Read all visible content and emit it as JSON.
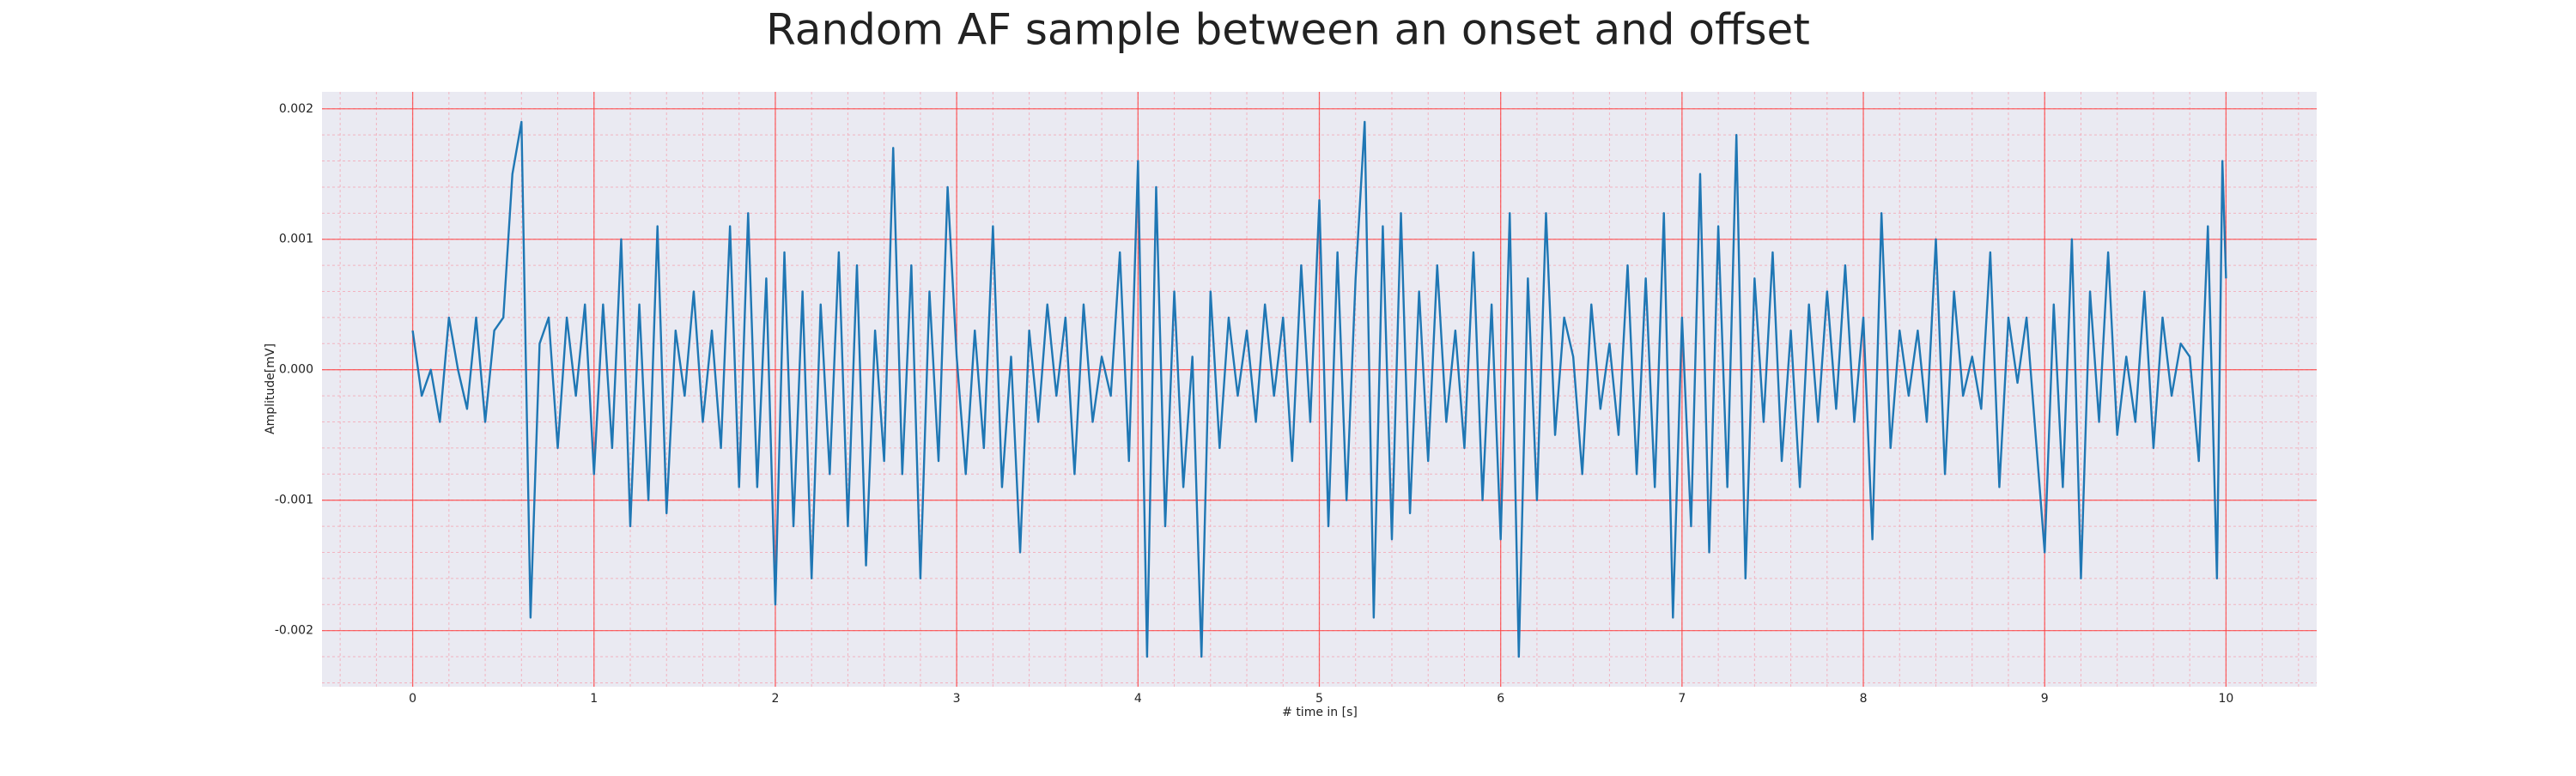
{
  "chart_data": {
    "type": "line",
    "title": "Random AF sample between an onset and offset",
    "x_label": "# time in [s]",
    "y_label": "Amplitude[mV]",
    "grid": true,
    "minor_grid": true,
    "xlim": [
      -0.5,
      10.5
    ],
    "ylim": [
      -0.00243,
      0.00213
    ],
    "xticks": [
      0,
      1,
      2,
      3,
      4,
      5,
      6,
      7,
      8,
      9,
      10
    ],
    "yticks": [
      -0.002,
      -0.001,
      {
        "value": 0,
        "label": "0.000"
      },
      0.001,
      0.002
    ],
    "x": [
      0,
      0.05,
      0.1,
      0.15,
      0.2,
      0.25,
      0.3,
      0.35,
      0.4,
      0.45,
      0.5,
      0.55,
      0.6,
      0.65,
      0.7,
      0.75,
      0.8,
      0.85,
      0.9,
      0.95,
      1,
      1.05,
      1.1,
      1.15,
      1.2,
      1.25,
      1.3,
      1.35,
      1.4,
      1.45,
      1.5,
      1.55,
      1.6,
      1.65,
      1.7,
      1.75,
      1.8,
      1.85,
      1.9,
      1.95,
      2,
      2.05,
      2.1,
      2.15,
      2.2,
      2.25,
      2.3,
      2.35,
      2.4,
      2.45,
      2.5,
      2.55,
      2.6,
      2.65,
      2.7,
      2.75,
      2.8,
      2.85,
      2.9,
      2.95,
      3,
      3.05,
      3.1,
      3.15,
      3.2,
      3.25,
      3.3,
      3.35,
      3.4,
      3.45,
      3.5,
      3.55,
      3.6,
      3.65,
      3.7,
      3.75,
      3.8,
      3.85,
      3.9,
      3.95,
      4,
      4.05,
      4.1,
      4.15,
      4.2,
      4.25,
      4.3,
      4.35,
      4.4,
      4.45,
      4.5,
      4.55,
      4.6,
      4.65,
      4.7,
      4.75,
      4.8,
      4.85,
      4.9,
      4.95,
      5,
      5.05,
      5.1,
      5.15,
      5.2,
      5.25,
      5.3,
      5.35,
      5.4,
      5.45,
      5.5,
      5.55,
      5.6,
      5.65,
      5.7,
      5.75,
      5.8,
      5.85,
      5.9,
      5.95,
      6,
      6.05,
      6.1,
      6.15,
      6.2,
      6.25,
      6.3,
      6.35,
      6.4,
      6.45,
      6.5,
      6.55,
      6.6,
      6.65,
      6.7,
      6.75,
      6.8,
      6.85,
      6.9,
      6.95,
      7,
      7.05,
      7.1,
      7.15,
      7.2,
      7.25,
      7.3,
      7.35,
      7.4,
      7.45,
      7.5,
      7.55,
      7.6,
      7.65,
      7.7,
      7.75,
      7.8,
      7.85,
      7.9,
      7.95,
      8,
      8.05,
      8.1,
      8.15,
      8.2,
      8.25,
      8.3,
      8.35,
      8.4,
      8.45,
      8.5,
      8.55,
      8.6,
      8.65,
      8.7,
      8.75,
      8.8,
      8.85,
      8.9,
      8.95,
      9,
      9.05,
      9.1,
      9.15,
      9.2,
      9.25,
      9.3,
      9.35,
      9.4,
      9.45,
      9.5,
      9.55,
      9.6,
      9.65,
      9.7,
      9.75,
      9.8,
      9.85,
      9.9,
      9.95,
      9.98,
      10
    ],
    "series": [
      {
        "color": "#1f77b4",
        "values": [
          0.0003,
          -0.0002,
          0.0,
          -0.0004,
          0.0004,
          0.0,
          -0.0003,
          0.0004,
          -0.0004,
          0.0003,
          0.0004,
          0.0015,
          0.0019,
          -0.0019,
          0.0002,
          0.0004,
          -0.0006,
          0.0004,
          -0.0002,
          0.0005,
          -0.0008,
          0.0005,
          -0.0006,
          0.001,
          -0.0012,
          0.0005,
          -0.001,
          0.0011,
          -0.0011,
          0.0003,
          -0.0002,
          0.0006,
          -0.0004,
          0.0003,
          -0.0006,
          0.0011,
          -0.0009,
          0.0012,
          -0.0009,
          0.0007,
          -0.0018,
          0.0009,
          -0.0012,
          0.0006,
          -0.0016,
          0.0005,
          -0.0008,
          0.0009,
          -0.0012,
          0.0008,
          -0.0015,
          0.0003,
          -0.0007,
          0.0017,
          -0.0008,
          0.0008,
          -0.0016,
          0.0006,
          -0.0007,
          0.0014,
          0.0001,
          -0.0008,
          0.0003,
          -0.0006,
          0.0011,
          -0.0009,
          0.0001,
          -0.0014,
          0.0003,
          -0.0004,
          0.0005,
          -0.0002,
          0.0004,
          -0.0008,
          0.0005,
          -0.0004,
          0.0001,
          -0.0002,
          0.0009,
          -0.0007,
          0.0016,
          -0.0022,
          0.0014,
          -0.0012,
          0.0006,
          -0.0009,
          0.0001,
          -0.0022,
          0.0006,
          -0.0006,
          0.0004,
          -0.0002,
          0.0003,
          -0.0004,
          0.0005,
          -0.0002,
          0.0004,
          -0.0007,
          0.0008,
          -0.0004,
          0.0013,
          -0.0012,
          0.0009,
          -0.001,
          0.0007,
          0.0019,
          -0.0019,
          0.0011,
          -0.0013,
          0.0012,
          -0.0011,
          0.0006,
          -0.0007,
          0.0008,
          -0.0004,
          0.0003,
          -0.0006,
          0.0009,
          -0.001,
          0.0005,
          -0.0013,
          0.0012,
          -0.0022,
          0.0007,
          -0.001,
          0.0012,
          -0.0005,
          0.0004,
          0.0001,
          -0.0008,
          0.0005,
          -0.0003,
          0.0002,
          -0.0005,
          0.0008,
          -0.0008,
          0.0007,
          -0.0009,
          0.0012,
          -0.0019,
          0.0004,
          -0.0012,
          0.0015,
          -0.0014,
          0.0011,
          -0.0009,
          0.0018,
          -0.0016,
          0.0007,
          -0.0004,
          0.0009,
          -0.0007,
          0.0003,
          -0.0009,
          0.0005,
          -0.0004,
          0.0006,
          -0.0003,
          0.0008,
          -0.0004,
          0.0004,
          -0.0013,
          0.0012,
          -0.0006,
          0.0003,
          -0.0002,
          0.0003,
          -0.0004,
          0.001,
          -0.0008,
          0.0006,
          -0.0002,
          0.0001,
          -0.0003,
          0.0009,
          -0.0009,
          0.0004,
          -0.0001,
          0.0004,
          -0.0005,
          -0.0014,
          0.0005,
          -0.0009,
          0.001,
          -0.0016,
          0.0006,
          -0.0004,
          0.0009,
          -0.0005,
          0.0001,
          -0.0004,
          0.0006,
          -0.0006,
          0.0004,
          -0.0002,
          0.0002,
          0.0001,
          -0.0007,
          0.0011,
          -0.0016,
          0.0016,
          0.0007
        ]
      }
    ]
  }
}
